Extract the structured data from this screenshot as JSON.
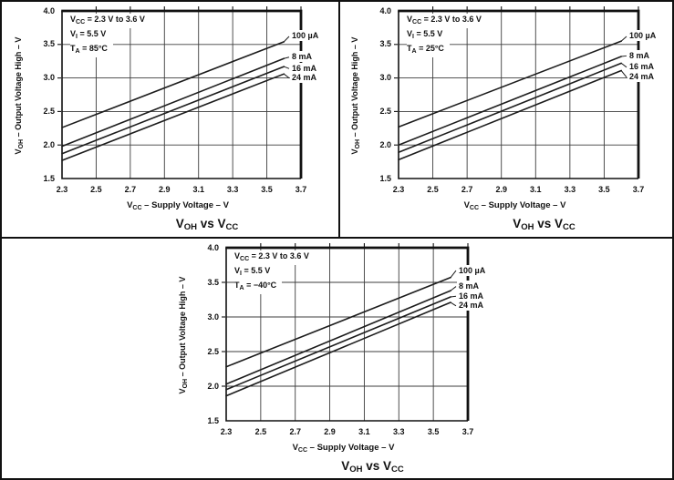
{
  "figure": {
    "description_title": "V_{OH} vs V_{CC}",
    "background": "#ffffff",
    "border_color": "#111111",
    "line_color": "#1c1c1c"
  },
  "chart_data": [
    {
      "type": "line",
      "title": "V_{OH} vs V_{CC}",
      "xlabel": "V_{CC} – Supply Voltage – V",
      "ylabel": "V_{OH} – Output Voltage High – V",
      "xlim": [
        2.3,
        3.7
      ],
      "ylim": [
        1.5,
        4.0
      ],
      "xticks": [
        "2.3",
        "2.5",
        "2.7",
        "2.9",
        "3.1",
        "3.3",
        "3.5",
        "3.7"
      ],
      "yticks": [
        "1.5",
        "2.0",
        "2.5",
        "3.0",
        "3.5",
        "4.0"
      ],
      "grid": true,
      "legend_position": "right-of-line-ends",
      "annotations": [
        "V_{CC} = 2.3 V to 3.6 V",
        "V_{I} = 5.5 V",
        "T_{A} = 85°C"
      ],
      "series": [
        {
          "name": "100 µA",
          "x": [
            2.3,
            3.6
          ],
          "y": [
            2.26,
            3.54
          ],
          "label_v": 3.62
        },
        {
          "name": "8 mA",
          "x": [
            2.3,
            3.6
          ],
          "y": [
            1.98,
            3.29
          ],
          "label_v": 3.31
        },
        {
          "name": "16 mA",
          "x": [
            2.3,
            3.6
          ],
          "y": [
            1.87,
            3.17
          ],
          "label_v": 3.14
        },
        {
          "name": "24 mA",
          "x": [
            2.3,
            3.6
          ],
          "y": [
            1.77,
            3.06
          ],
          "label_v": 3.0
        }
      ]
    },
    {
      "type": "line",
      "title": "V_{OH} vs V_{CC}",
      "xlabel": "V_{CC} – Supply Voltage – V",
      "ylabel": "V_{OH} – Output Voltage High – V",
      "xlim": [
        2.3,
        3.7
      ],
      "ylim": [
        1.5,
        4.0
      ],
      "xticks": [
        "2.3",
        "2.5",
        "2.7",
        "2.9",
        "3.1",
        "3.3",
        "3.5",
        "3.7"
      ],
      "yticks": [
        "1.5",
        "2.0",
        "2.5",
        "3.0",
        "3.5",
        "4.0"
      ],
      "grid": true,
      "legend_position": "right-of-line-ends",
      "annotations": [
        "V_{CC} = 2.3 V to 3.6 V",
        "V_{I} = 5.5 V",
        "T_{A} = 25°C"
      ],
      "series": [
        {
          "name": "100 µA",
          "x": [
            2.3,
            3.6
          ],
          "y": [
            2.27,
            3.55
          ],
          "label_v": 3.62
        },
        {
          "name": "8 mA",
          "x": [
            2.3,
            3.6
          ],
          "y": [
            2.0,
            3.32
          ],
          "label_v": 3.33
        },
        {
          "name": "16 mA",
          "x": [
            2.3,
            3.6
          ],
          "y": [
            1.89,
            3.22
          ],
          "label_v": 3.16
        },
        {
          "name": "24 mA",
          "x": [
            2.3,
            3.6
          ],
          "y": [
            1.78,
            3.11
          ],
          "label_v": 3.01
        }
      ]
    },
    {
      "type": "line",
      "title": "V_{OH} vs V_{CC}",
      "xlabel": "V_{CC} – Supply Voltage – V",
      "ylabel": "V_{OH} – Output Voltage High – V",
      "xlim": [
        2.3,
        3.7
      ],
      "ylim": [
        1.5,
        4.0
      ],
      "xticks": [
        "2.3",
        "2.5",
        "2.7",
        "2.9",
        "3.1",
        "3.3",
        "3.5",
        "3.7"
      ],
      "yticks": [
        "1.5",
        "2.0",
        "2.5",
        "3.0",
        "3.5",
        "4.0"
      ],
      "grid": true,
      "legend_position": "right-of-line-ends",
      "annotations": [
        "V_{CC} = 2.3 V to 3.6 V",
        "V_{I} = 5.5 V",
        "T_{A} = −40°C"
      ],
      "series": [
        {
          "name": "100 µA",
          "x": [
            2.3,
            3.6
          ],
          "y": [
            2.28,
            3.57
          ],
          "label_v": 3.67
        },
        {
          "name": "8 mA",
          "x": [
            2.3,
            3.6
          ],
          "y": [
            2.03,
            3.38
          ],
          "label_v": 3.44
        },
        {
          "name": "16 mA",
          "x": [
            2.3,
            3.6
          ],
          "y": [
            1.95,
            3.29
          ],
          "label_v": 3.3
        },
        {
          "name": "24 mA",
          "x": [
            2.3,
            3.6
          ],
          "y": [
            1.86,
            3.21
          ],
          "label_v": 3.16
        }
      ]
    }
  ]
}
